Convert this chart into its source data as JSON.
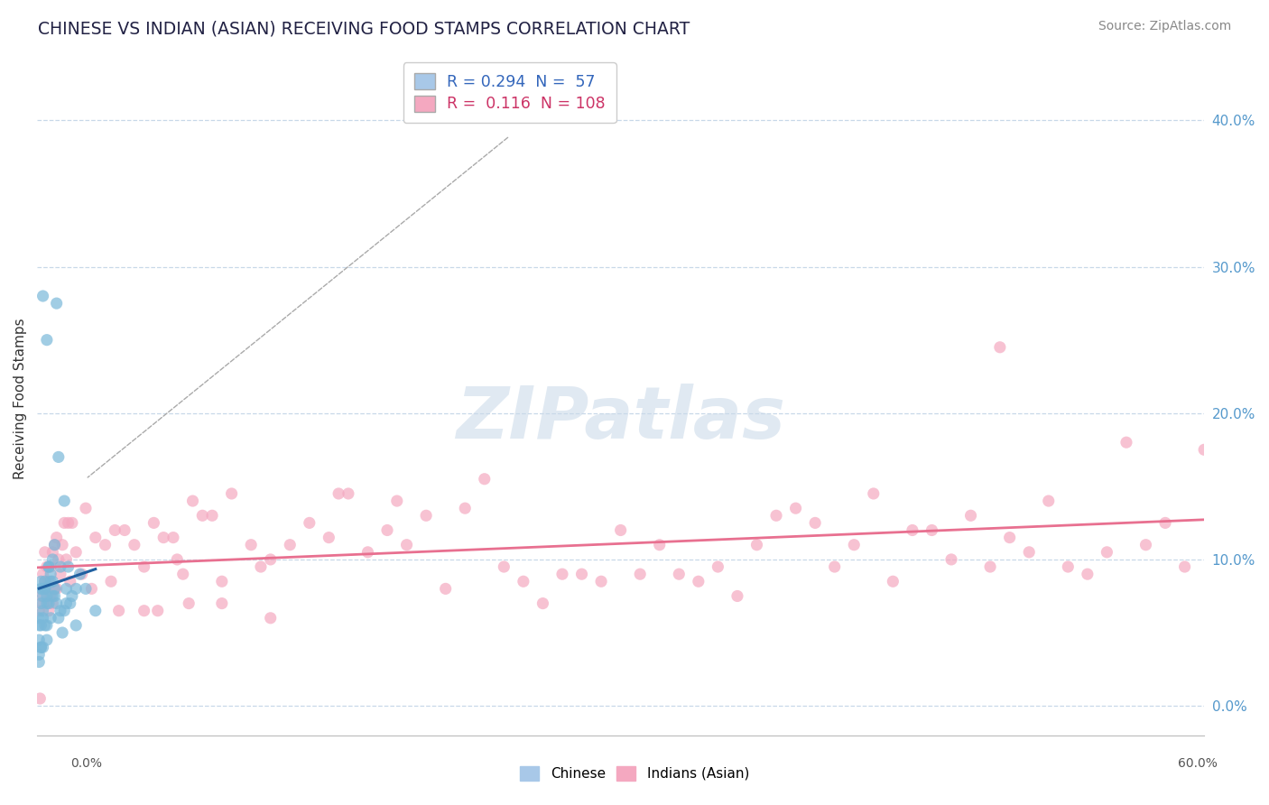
{
  "title": "CHINESE VS INDIAN (ASIAN) RECEIVING FOOD STAMPS CORRELATION CHART",
  "source": "Source: ZipAtlas.com",
  "ylabel": "Receiving Food Stamps",
  "ylabel_right_vals": [
    0.0,
    10.0,
    20.0,
    30.0,
    40.0
  ],
  "xlim": [
    0.0,
    60.0
  ],
  "ylim": [
    -2.0,
    44.0
  ],
  "legend1_label": "R = 0.294  N =  57",
  "legend2_label": "R =  0.116  N = 108",
  "chinese_color": "#7ab8d9",
  "indian_color": "#f4a8c0",
  "chinese_line_color": "#2060a0",
  "indian_line_color": "#e87090",
  "watermark": "ZIPatlas",
  "background_color": "#ffffff",
  "grid_color": "#c8d8e8",
  "chinese_x": [
    0.1,
    0.1,
    0.1,
    0.1,
    0.2,
    0.2,
    0.2,
    0.2,
    0.2,
    0.3,
    0.3,
    0.3,
    0.3,
    0.3,
    0.4,
    0.4,
    0.4,
    0.5,
    0.5,
    0.5,
    0.5,
    0.6,
    0.6,
    0.7,
    0.7,
    0.8,
    0.8,
    0.9,
    0.9,
    1.0,
    1.1,
    1.2,
    1.3,
    1.4,
    1.5,
    1.5,
    1.6,
    1.7,
    1.8,
    2.0,
    2.0,
    2.2,
    2.5,
    3.0,
    0.1,
    0.2,
    0.3,
    0.4,
    0.5,
    0.6,
    0.7,
    0.8,
    0.9,
    1.0,
    1.1,
    1.2,
    1.4
  ],
  "chinese_y": [
    3.5,
    4.5,
    5.5,
    6.0,
    4.0,
    5.5,
    7.0,
    8.0,
    8.5,
    4.0,
    6.0,
    7.5,
    8.0,
    28.0,
    5.5,
    8.0,
    8.5,
    4.5,
    7.0,
    7.5,
    25.0,
    7.0,
    9.5,
    6.0,
    9.0,
    8.5,
    10.0,
    7.5,
    11.0,
    27.5,
    17.0,
    6.5,
    5.0,
    14.0,
    7.0,
    8.0,
    9.5,
    7.0,
    7.5,
    5.5,
    8.0,
    9.0,
    8.0,
    6.5,
    3.0,
    4.0,
    6.5,
    8.0,
    5.5,
    9.5,
    8.5,
    7.5,
    8.0,
    7.0,
    6.0,
    9.5,
    6.5
  ],
  "indian_x": [
    0.1,
    0.2,
    0.3,
    0.3,
    0.4,
    0.4,
    0.5,
    0.5,
    0.6,
    0.6,
    0.7,
    0.7,
    0.8,
    0.8,
    0.9,
    0.9,
    1.0,
    1.0,
    1.1,
    1.2,
    1.3,
    1.4,
    1.5,
    1.6,
    1.8,
    2.0,
    2.5,
    3.0,
    3.5,
    4.0,
    4.5,
    5.0,
    5.5,
    6.0,
    6.5,
    7.0,
    7.5,
    8.0,
    8.5,
    9.0,
    9.5,
    10.0,
    11.0,
    11.5,
    12.0,
    13.0,
    14.0,
    15.0,
    15.5,
    16.0,
    17.0,
    18.0,
    18.5,
    19.0,
    20.0,
    21.0,
    22.0,
    23.0,
    24.0,
    25.0,
    26.0,
    27.0,
    28.0,
    29.0,
    30.0,
    31.0,
    32.0,
    33.0,
    34.0,
    35.0,
    36.0,
    37.0,
    38.0,
    39.0,
    40.0,
    41.0,
    42.0,
    43.0,
    44.0,
    45.0,
    46.0,
    47.0,
    48.0,
    49.0,
    49.5,
    50.0,
    51.0,
    52.0,
    53.0,
    54.0,
    55.0,
    56.0,
    57.0,
    58.0,
    59.0,
    60.0,
    2.8,
    4.2,
    6.2,
    7.2,
    0.15,
    1.7,
    2.3,
    3.8,
    5.5,
    7.8,
    9.5,
    12.0
  ],
  "indian_y": [
    6.5,
    7.5,
    7.0,
    9.0,
    8.5,
    10.5,
    8.0,
    9.5,
    6.5,
    8.5,
    7.5,
    9.5,
    7.0,
    10.5,
    8.0,
    11.0,
    8.0,
    11.5,
    10.0,
    9.0,
    11.0,
    12.5,
    10.0,
    12.5,
    12.5,
    10.5,
    13.5,
    11.5,
    11.0,
    12.0,
    12.0,
    11.0,
    9.5,
    12.5,
    11.5,
    11.5,
    9.0,
    14.0,
    13.0,
    13.0,
    8.5,
    14.5,
    11.0,
    9.5,
    10.0,
    11.0,
    12.5,
    11.5,
    14.5,
    14.5,
    10.5,
    12.0,
    14.0,
    11.0,
    13.0,
    8.0,
    13.5,
    15.5,
    9.5,
    8.5,
    7.0,
    9.0,
    9.0,
    8.5,
    12.0,
    9.0,
    11.0,
    9.0,
    8.5,
    9.5,
    7.5,
    11.0,
    13.0,
    13.5,
    12.5,
    9.5,
    11.0,
    14.5,
    8.5,
    12.0,
    12.0,
    10.0,
    13.0,
    9.5,
    24.5,
    11.5,
    10.5,
    14.0,
    9.5,
    9.0,
    10.5,
    18.0,
    11.0,
    12.5,
    9.5,
    17.5,
    8.0,
    6.5,
    6.5,
    10.0,
    0.5,
    8.5,
    9.0,
    8.5,
    6.5,
    7.0,
    7.0,
    6.0
  ]
}
